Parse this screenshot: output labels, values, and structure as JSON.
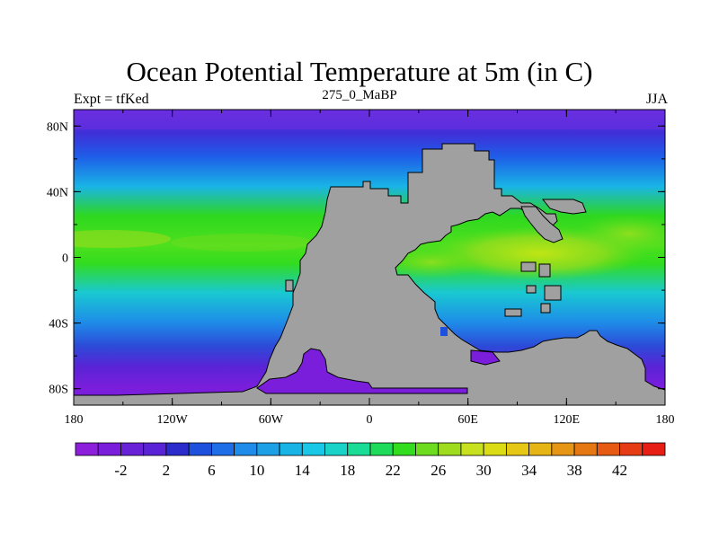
{
  "figure": {
    "title": "Ocean Potential Temperature at 5m (in C)",
    "left_string": "Expt = tfKed",
    "center_string": "275_0_MaBP",
    "right_string": "JJA"
  },
  "map": {
    "lon_range": [
      -180,
      180
    ],
    "lat_range": [
      -90,
      90
    ],
    "lon_ticks": [
      {
        "value": -180,
        "label": "180"
      },
      {
        "value": -120,
        "label": "120W"
      },
      {
        "value": -60,
        "label": "60W"
      },
      {
        "value": 0,
        "label": "0"
      },
      {
        "value": 60,
        "label": "60E"
      },
      {
        "value": 120,
        "label": "120E"
      },
      {
        "value": 180,
        "label": "180"
      }
    ],
    "lat_ticks": [
      {
        "value": 80,
        "label": "80N"
      },
      {
        "value": 40,
        "label": "40N"
      },
      {
        "value": 0,
        "label": "0"
      },
      {
        "value": -40,
        "label": "40S"
      },
      {
        "value": -80,
        "label": "80S"
      }
    ],
    "land_color": "#a0a0a0",
    "colors": {
      "deep_cold": "#6a2fe0",
      "cold": "#3f2fd8",
      "blue": "#1e5ee8",
      "mid": "#19b4e6",
      "warm": "#2ed81e",
      "hot": "#c8e614"
    }
  },
  "colorbar": {
    "colors": [
      "#8c1edc",
      "#7a1edc",
      "#6a22d8",
      "#5a24d6",
      "#2c2ccc",
      "#1e50de",
      "#1e6ee8",
      "#1e8ce8",
      "#1ea0e6",
      "#19b4e6",
      "#19c8e6",
      "#19d2c8",
      "#19dc96",
      "#1edc5a",
      "#32dc1e",
      "#6edc1e",
      "#a0dc1e",
      "#c8e11e",
      "#dcdc14",
      "#e6c814",
      "#e6b414",
      "#e69614",
      "#e67814",
      "#e65a14",
      "#e63c14",
      "#e61e14"
    ],
    "labels": [
      "-2",
      "2",
      "6",
      "10",
      "14",
      "18",
      "22",
      "26",
      "30",
      "34",
      "38",
      "42"
    ]
  }
}
